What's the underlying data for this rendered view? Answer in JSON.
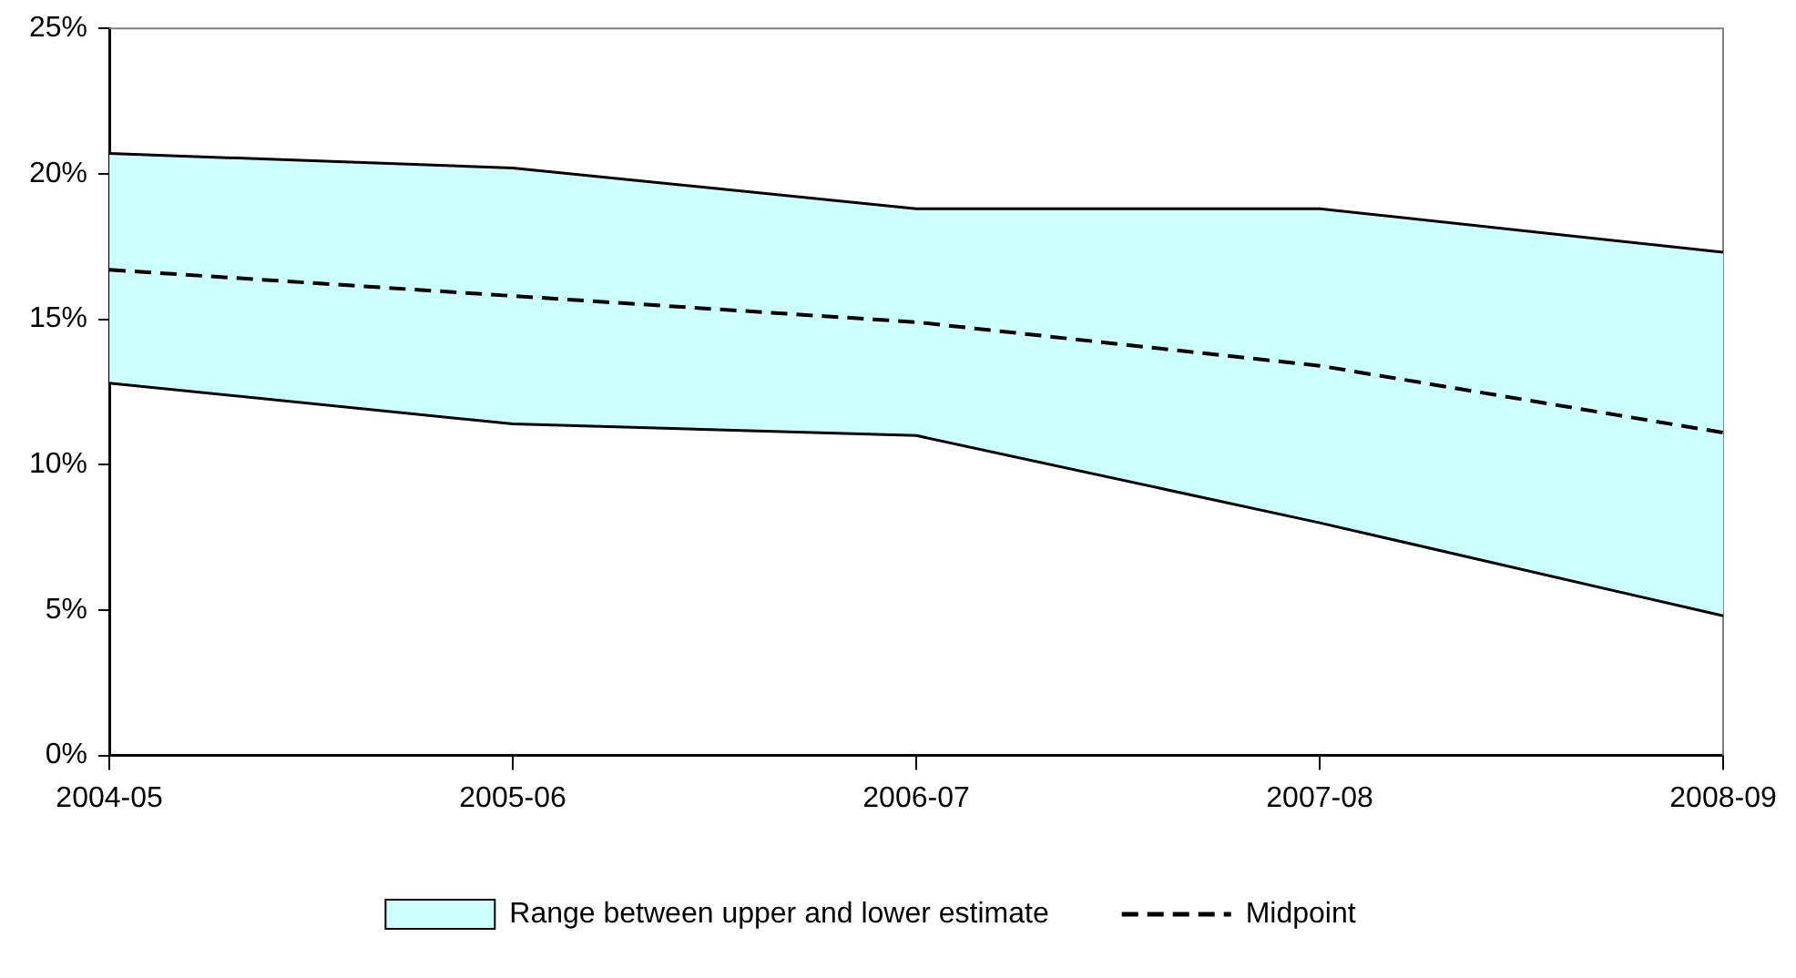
{
  "chart_data": {
    "type": "line",
    "categories": [
      "2004-05",
      "2005-06",
      "2006-07",
      "2007-08",
      "2008-09"
    ],
    "series": [
      {
        "type": "line",
        "color": "#000000",
        "values": [
          12.8,
          11.4,
          11.0,
          8.0,
          4.8
        ]
      },
      {
        "name": "Range between upper and lower estimate",
        "type": "area",
        "color": "#ccffff",
        "values": [
          20.7,
          20.2,
          18.8,
          18.8,
          17.3
        ]
      },
      {
        "name": "Midpoint",
        "type": "line",
        "color": "#000000",
        "line_style": "dashed",
        "values": [
          16.7,
          15.8,
          14.9,
          13.4,
          11.1
        ]
      }
    ],
    "ylim": [
      0,
      25
    ],
    "yticks": [
      {
        "value": 0,
        "label": "0%"
      },
      {
        "value": 5,
        "label": "5%"
      },
      {
        "value": 10,
        "label": "10%"
      },
      {
        "value": 15,
        "label": "15%"
      },
      {
        "value": 20,
        "label": "20%"
      },
      {
        "value": 25,
        "label": "25%"
      }
    ],
    "grid": false,
    "legend": "bottom",
    "marker": "none"
  }
}
